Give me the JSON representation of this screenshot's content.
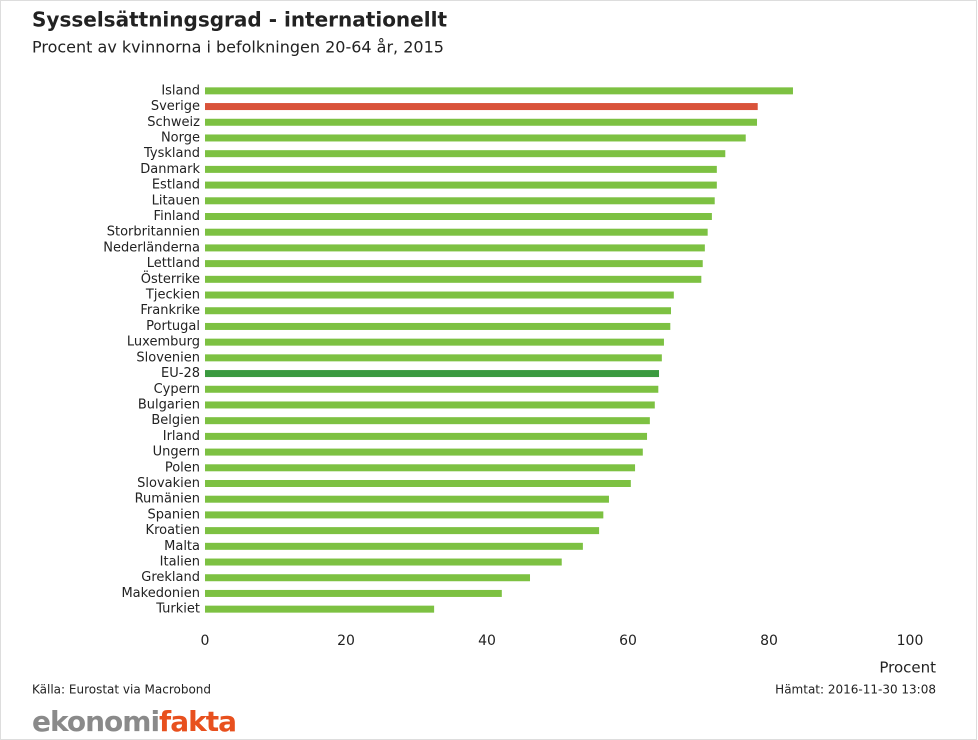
{
  "chart_data": {
    "type": "bar",
    "orientation": "horizontal",
    "title": "Sysselsättningsgrad - internationellt",
    "subtitle": "Procent av kvinnorna i befolkningen 20-64 år, 2015",
    "x_label": "Procent",
    "source": "Källa: Eurostat via Macrobond",
    "retrieved": "Hämtat: 2016-11-30 13:08",
    "categories": [
      "Island",
      "Sverige",
      "Schweiz",
      "Norge",
      "Tyskland",
      "Danmark",
      "Estland",
      "Litauen",
      "Finland",
      "Storbritannien",
      "Nederländerna",
      "Lettland",
      "Österrike",
      "Tjeckien",
      "Frankrike",
      "Portugal",
      "Luxemburg",
      "Slovenien",
      "EU-28",
      "Cypern",
      "Bulgarien",
      "Belgien",
      "Irland",
      "Ungern",
      "Polen",
      "Slovakien",
      "Rumänien",
      "Spanien",
      "Kroatien",
      "Malta",
      "Italien",
      "Grekland",
      "Makedonien",
      "Turkiet"
    ],
    "values": [
      83.4,
      78.4,
      78.3,
      76.7,
      73.8,
      72.6,
      72.6,
      72.3,
      71.9,
      71.3,
      70.9,
      70.6,
      70.4,
      66.5,
      66.1,
      66.0,
      65.1,
      64.8,
      64.4,
      64.3,
      63.8,
      63.1,
      62.7,
      62.1,
      61.0,
      60.4,
      57.3,
      56.5,
      55.9,
      53.6,
      50.6,
      46.1,
      42.1,
      32.5
    ],
    "colors": [
      "#7dc142",
      "#d9533a",
      "#7dc142",
      "#7dc142",
      "#7dc142",
      "#7dc142",
      "#7dc142",
      "#7dc142",
      "#7dc142",
      "#7dc142",
      "#7dc142",
      "#7dc142",
      "#7dc142",
      "#7dc142",
      "#7dc142",
      "#7dc142",
      "#7dc142",
      "#7dc142",
      "#3a9a3f",
      "#7dc142",
      "#7dc142",
      "#7dc142",
      "#7dc142",
      "#7dc142",
      "#7dc142",
      "#7dc142",
      "#7dc142",
      "#7dc142",
      "#7dc142",
      "#7dc142",
      "#7dc142",
      "#7dc142",
      "#7dc142",
      "#7dc142"
    ],
    "xlim": [
      0,
      100
    ],
    "xticks": [
      0,
      20,
      40,
      60,
      80,
      100
    ],
    "grid": false
  },
  "logo": {
    "part1": "ekonomi",
    "part2": "fakta"
  }
}
